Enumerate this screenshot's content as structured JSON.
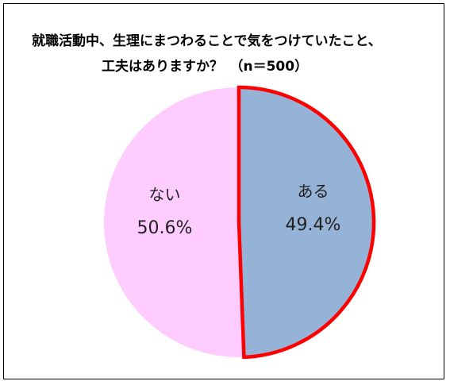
{
  "chart_data": {
    "type": "pie",
    "title_lines": [
      "就職活動中、生理にまつわることで気をつけていたこと、",
      "工夫はありますか？　（n＝500）"
    ],
    "slices": [
      {
        "label": "ある",
        "value": 49.4,
        "value_label": "49.4%",
        "color": "#95b3d7",
        "highlight": "#ff0000"
      },
      {
        "label": "ない",
        "value": 50.6,
        "value_label": "50.6%",
        "color": "#ffccff"
      }
    ],
    "legend": "none",
    "start_angle": "12 o'clock, clockwise"
  }
}
